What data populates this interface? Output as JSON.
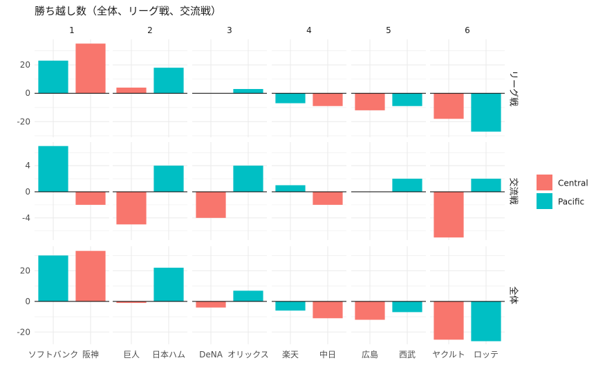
{
  "chart_data": {
    "type": "bar",
    "title": "勝ち越し数（全体、リーグ戦、交流戦）",
    "facet_columns": [
      "1",
      "2",
      "3",
      "4",
      "5",
      "6"
    ],
    "facet_rows": [
      {
        "label": "リーグ戦",
        "ylim": [
          -31,
          38
        ],
        "yticks": [
          20,
          0,
          -20
        ],
        "ytick_labels": [
          "20",
          "0",
          "-20"
        ]
      },
      {
        "label": "交流戦",
        "ylim": [
          -7.4,
          7.6
        ],
        "yticks": [
          4,
          0,
          -4
        ],
        "ytick_labels": [
          "4",
          "0",
          "-4"
        ]
      },
      {
        "label": "全体",
        "ylim": [
          -28,
          36
        ],
        "yticks": [
          20,
          0,
          -20
        ],
        "ytick_labels": [
          "20",
          "0",
          "-20"
        ]
      }
    ],
    "teams": [
      {
        "rank": "1",
        "name": "ソフトバンク",
        "league": "Pacific",
        "values": [
          23,
          7,
          30
        ]
      },
      {
        "rank": "1",
        "name": "阪神",
        "league": "Central",
        "values": [
          35,
          -2,
          33
        ]
      },
      {
        "rank": "2",
        "name": "巨人",
        "league": "Central",
        "values": [
          4,
          -5,
          -1
        ]
      },
      {
        "rank": "2",
        "name": "日本ハム",
        "league": "Pacific",
        "values": [
          18,
          4,
          22
        ]
      },
      {
        "rank": "3",
        "name": "DeNA",
        "league": "Central",
        "values": [
          0,
          -4,
          -4
        ]
      },
      {
        "rank": "3",
        "name": "オリックス",
        "league": "Pacific",
        "values": [
          3,
          4,
          7
        ]
      },
      {
        "rank": "4",
        "name": "楽天",
        "league": "Pacific",
        "values": [
          -7,
          1,
          -6
        ]
      },
      {
        "rank": "4",
        "name": "中日",
        "league": "Central",
        "values": [
          -9,
          -2,
          -11
        ]
      },
      {
        "rank": "5",
        "name": "広島",
        "league": "Central",
        "values": [
          -12,
          0,
          -12
        ]
      },
      {
        "rank": "5",
        "name": "西武",
        "league": "Pacific",
        "values": [
          -9,
          2,
          -7
        ]
      },
      {
        "rank": "6",
        "name": "ヤクルト",
        "league": "Central",
        "values": [
          -18,
          -7,
          -25
        ]
      },
      {
        "rank": "6",
        "name": "ロッテ",
        "league": "Pacific",
        "values": [
          -27,
          2,
          -26
        ]
      }
    ],
    "legend": {
      "placement": "right",
      "entries": [
        {
          "name": "Central",
          "color": "#F8766D"
        },
        {
          "name": "Pacific",
          "color": "#00BFC4"
        }
      ]
    },
    "grid": true,
    "colors": {
      "grid": "#EBEBEB",
      "zero_line": "#000000",
      "text": "#1A1A1A",
      "axis_text": "#4D4D4D"
    }
  }
}
